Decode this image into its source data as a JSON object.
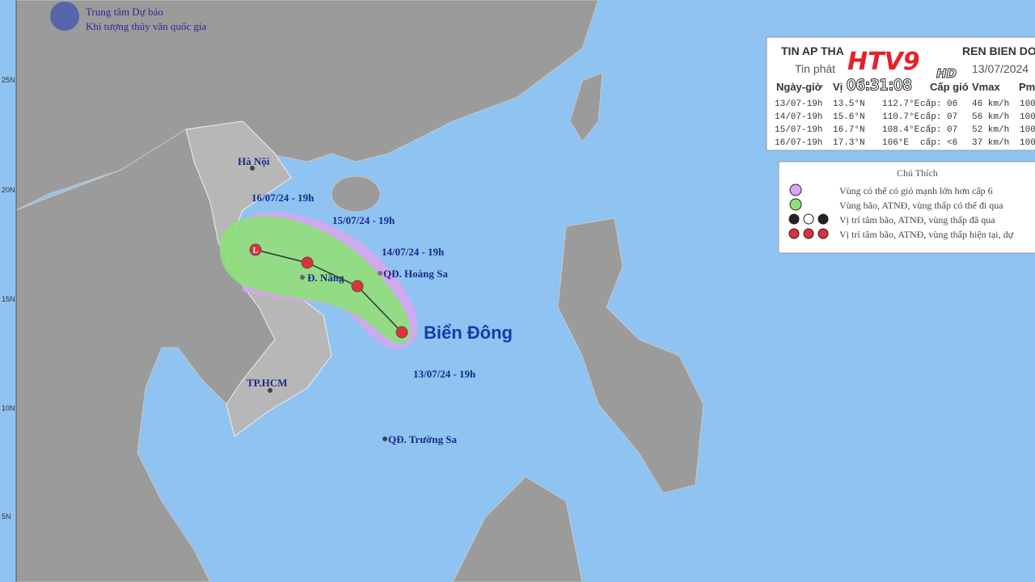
{
  "header": {
    "agency_line1": "Trung tâm Dự báo",
    "agency_line2": "Khí tượng thủy văn quốc gia"
  },
  "map": {
    "lat_labels": [
      "25N",
      "20N",
      "15N",
      "10N",
      "5N"
    ],
    "places": [
      "Hà Nội",
      "Đ. Nẵng",
      "TP.HCM",
      "QĐ. Hoàng Sa",
      "QĐ. Trường Sa"
    ],
    "sea": "Biển Đông",
    "track_labels": [
      "16/07/24 - 19h",
      "15/07/24 - 19h",
      "14/07/24 - 19h",
      "13/07/24 - 19h"
    ],
    "track_symbol": "L"
  },
  "table": {
    "title_left": "TIN AP THA",
    "title_right": "REN BIEN DO",
    "subtitle_left": "Tin phát",
    "subtitle_right": "13/07/2024",
    "columns": [
      "Ngày-giờ",
      "Vị",
      "Cấp gió",
      "Vmax",
      "Pm"
    ],
    "rows": [
      [
        "13/07-19h",
        "13.5°N",
        "112.7°E",
        "cấp: 06",
        "46 km/h",
        "100"
      ],
      [
        "14/07-19h",
        "15.6°N",
        "110.7°E",
        "cấp: 07",
        "56 km/h",
        "100"
      ],
      [
        "15/07-19h",
        "16.7°N",
        "108.4°E",
        "cấp: 07",
        "52 km/h",
        "100"
      ],
      [
        "16/07-19h",
        "17.3°N",
        "106°E",
        "cấp: <6",
        "37 km/h",
        "100"
      ]
    ]
  },
  "legend": {
    "title": "Chú Thích",
    "items": [
      "Vùng có thể có gió mạnh lớn hơn cấp 6",
      "Vùng bão, ATNĐ, vùng thấp có thể đi qua",
      "Vị trí tâm bão, ATNĐ, vùng thấp đã qua",
      "Vị trí tâm bão, ATNĐ, vùng thấp hiện tại, dự"
    ]
  },
  "broadcast": {
    "channel": "HTV9",
    "quality": "HD",
    "time": "06:31:08"
  }
}
